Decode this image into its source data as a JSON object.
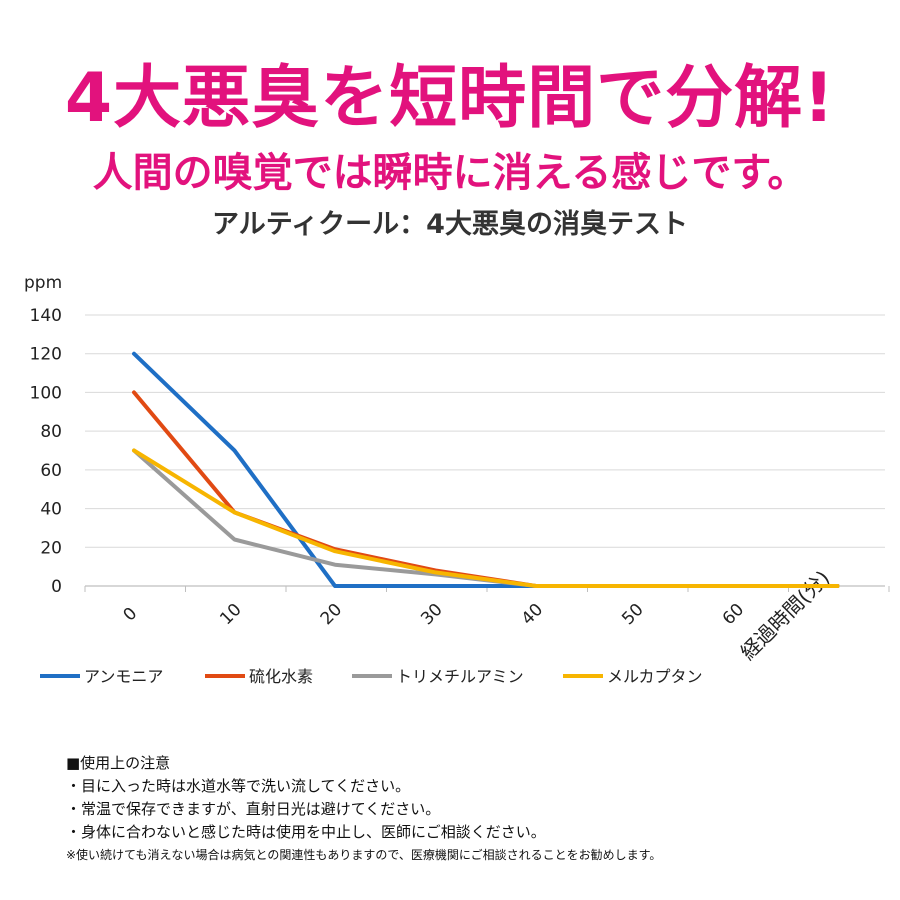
{
  "headline": {
    "main": "4大悪臭を短時間で分解!",
    "sub": "人間の嗅覚では瞬時に消える感じです。"
  },
  "colors": {
    "accent": "#e2127d",
    "ammonia": "#1f6fc5",
    "hydrogen_sulfide": "#e14a13",
    "trimethylamine": "#9a9a9a",
    "mercaptan": "#f7b500"
  },
  "chart_data": {
    "type": "line",
    "title": "アルティクール：4大悪臭の消臭テスト",
    "ylabel": "ppm",
    "xlabel": "経過時間(分)",
    "x": [
      0,
      10,
      20,
      30,
      40,
      50,
      60,
      70
    ],
    "x_tick_labels": [
      "0",
      "10",
      "20",
      "30",
      "40",
      "50",
      "60"
    ],
    "ylim": [
      0,
      140
    ],
    "y_ticks": [
      0,
      20,
      40,
      60,
      80,
      100,
      120,
      140
    ],
    "grid": "horizontal",
    "legend_position": "bottom",
    "series": [
      {
        "name": "アンモニア",
        "color": "#1f6fc5",
        "values": [
          120,
          70,
          0,
          0,
          0,
          0,
          0,
          0
        ]
      },
      {
        "name": "硫化水素",
        "color": "#e14a13",
        "values": [
          100,
          38,
          19,
          8,
          0,
          0,
          0,
          0
        ]
      },
      {
        "name": "トリメチルアミン",
        "color": "#9a9a9a",
        "values": [
          70,
          24,
          11,
          6,
          0,
          0,
          0,
          0
        ]
      },
      {
        "name": "メルカプタン",
        "color": "#f7b500",
        "values": [
          70,
          38,
          18,
          7,
          0,
          0,
          0,
          0
        ]
      }
    ]
  },
  "notes": {
    "heading": "■使用上の注意",
    "items": [
      "・目に入った時は水道水等で洗い流してください。",
      "・常温で保存できますが、直射日光は避けてください。",
      "・身体に合わないと感じた時は使用を中止し、医師にご相談ください。"
    ],
    "footnote": "※使い続けても消えない場合は病気との関連性もありますので、医療機関にご相談されることをお勧めします。"
  }
}
